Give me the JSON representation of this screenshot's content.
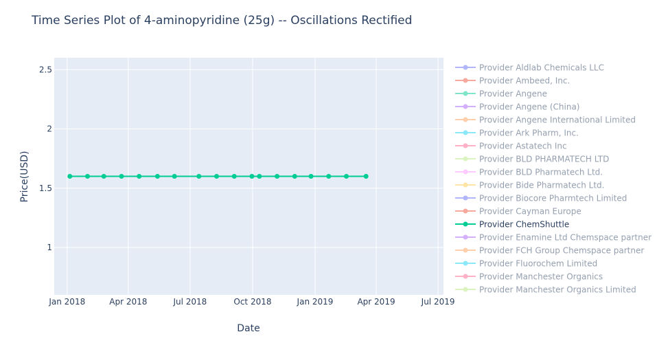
{
  "chart_data": {
    "type": "line",
    "title": "Time Series Plot of 4-aminopyridine (25g) -- Oscillations Rectified",
    "xlabel": "Date",
    "ylabel": "Price(USD)",
    "x_range": [
      "2017-12-13",
      "2019-07-09"
    ],
    "ylim": [
      0.6,
      2.6
    ],
    "x_ticks": [
      {
        "date": "2018-01-01",
        "label": "Jan 2018"
      },
      {
        "date": "2018-04-01",
        "label": "Apr 2018"
      },
      {
        "date": "2018-07-01",
        "label": "Jul 2018"
      },
      {
        "date": "2018-10-01",
        "label": "Oct 2018"
      },
      {
        "date": "2019-01-01",
        "label": "Jan 2019"
      },
      {
        "date": "2019-04-01",
        "label": "Apr 2019"
      },
      {
        "date": "2019-07-01",
        "label": "Jul 2019"
      }
    ],
    "y_ticks": [
      {
        "value": 1,
        "label": "1"
      },
      {
        "value": 1.5,
        "label": "1.5"
      },
      {
        "value": 2,
        "label": "2"
      },
      {
        "value": 2.5,
        "label": "2.5"
      }
    ],
    "grid": true,
    "legend_position": "right",
    "series": [
      {
        "name": "Provider Aldlab Chemicals LLC",
        "color": "#636efa",
        "active": false,
        "x": [],
        "y": []
      },
      {
        "name": "Provider Ambeed, Inc.",
        "color": "#EF553B",
        "active": false,
        "x": [],
        "y": []
      },
      {
        "name": "Provider Angene",
        "color": "#00cc96",
        "active": false,
        "x": [],
        "y": []
      },
      {
        "name": "Provider Angene (China)",
        "color": "#ab63fa",
        "active": false,
        "x": [],
        "y": []
      },
      {
        "name": "Provider Angene International Limited",
        "color": "#FFA15A",
        "active": false,
        "x": [],
        "y": []
      },
      {
        "name": "Provider Ark Pharm, Inc.",
        "color": "#19d3f3",
        "active": false,
        "x": [],
        "y": []
      },
      {
        "name": "Provider Astatech Inc",
        "color": "#FF6692",
        "active": false,
        "x": [],
        "y": []
      },
      {
        "name": "Provider BLD PHARMATECH LTD",
        "color": "#B6E880",
        "active": false,
        "x": [],
        "y": []
      },
      {
        "name": "Provider BLD Pharmatech Ltd.",
        "color": "#FF97FF",
        "active": false,
        "x": [],
        "y": []
      },
      {
        "name": "Provider Bide Pharmatech Ltd.",
        "color": "#FECB52",
        "active": false,
        "x": [],
        "y": []
      },
      {
        "name": "Provider Biocore Pharmtech Limited",
        "color": "#636efa",
        "active": false,
        "x": [],
        "y": []
      },
      {
        "name": "Provider Cayman Europe",
        "color": "#EF553B",
        "active": false,
        "x": [],
        "y": []
      },
      {
        "name": "Provider ChemShuttle",
        "color": "#00cc96",
        "active": true,
        "x": [
          "2018-01-05",
          "2018-01-31",
          "2018-02-24",
          "2018-03-22",
          "2018-04-17",
          "2018-05-14",
          "2018-06-08",
          "2018-07-14",
          "2018-08-09",
          "2018-09-04",
          "2018-09-30",
          "2018-10-11",
          "2018-11-06",
          "2018-12-02",
          "2018-12-26",
          "2019-01-21",
          "2019-02-16",
          "2019-03-17"
        ],
        "y": [
          1.6,
          1.6,
          1.6,
          1.6,
          1.6,
          1.6,
          1.6,
          1.6,
          1.6,
          1.6,
          1.6,
          1.6,
          1.6,
          1.6,
          1.6,
          1.6,
          1.6,
          1.6
        ]
      },
      {
        "name": "Provider Enamine Ltd Chemspace partner",
        "color": "#ab63fa",
        "active": false,
        "x": [],
        "y": []
      },
      {
        "name": "Provider FCH Group Chemspace partner",
        "color": "#FFA15A",
        "active": false,
        "x": [],
        "y": []
      },
      {
        "name": "Provider Fluorochem Limited",
        "color": "#19d3f3",
        "active": false,
        "x": [],
        "y": []
      },
      {
        "name": "Provider Manchester Organics",
        "color": "#FF6692",
        "active": false,
        "x": [],
        "y": []
      },
      {
        "name": "Provider Manchester Organics Limited",
        "color": "#B6E880",
        "active": false,
        "x": [],
        "y": []
      }
    ],
    "colors": {
      "plot_bg": "#e5ecf6",
      "grid": "#ffffff",
      "text": "#2a3f5f",
      "inactive_text": "#9aa5b1"
    }
  }
}
